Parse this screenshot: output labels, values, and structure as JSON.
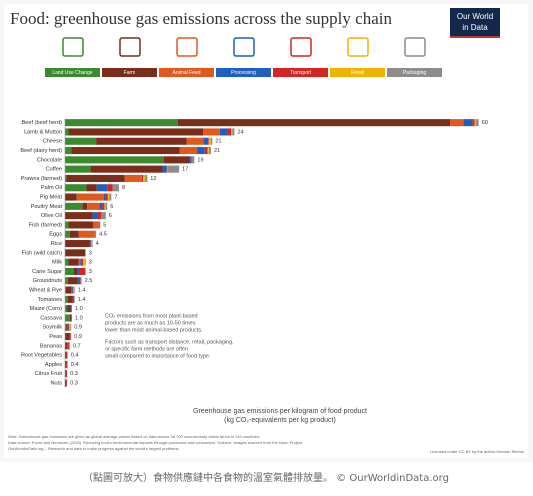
{
  "chart_data": {
    "type": "stacked-bar-horizontal",
    "title": "Food: greenhouse gas emissions across the supply chain",
    "logo": [
      "Our World",
      "in Data"
    ],
    "categories": [
      "Beef (beef herd)",
      "Lamb & Mutton",
      "Cheese",
      "Beef (dairy herd)",
      "Chocolate",
      "Coffee",
      "Prawns (farmed)",
      "Palm Oil",
      "Pig Meat",
      "Poultry Meat",
      "Olive Oil",
      "Fish (farmed)",
      "Eggs",
      "Rice",
      "Fish (wild catch)",
      "Milk",
      "Cane Sugar",
      "Groundnuts",
      "Wheat & Rye",
      "Tomatoes",
      "Maize (Corn)",
      "Cassava",
      "Soymilk",
      "Peas",
      "Bananas",
      "Root Vegetables",
      "Apples",
      "Citrus Fruit",
      "Nuts"
    ],
    "series": [
      {
        "name": "Land Use Change",
        "color": "#3a8a2e",
        "values": [
          16.3,
          0.5,
          4.5,
          0.9,
          14.3,
          3.7,
          0.2,
          3.1,
          0,
          2.5,
          0,
          0.5,
          0.7,
          0,
          0,
          0.5,
          1.3,
          0.4,
          0.1,
          0.4,
          0.3,
          0.7,
          0.2,
          0,
          0,
          0,
          0,
          0,
          0
        ]
      },
      {
        "name": "Farm",
        "color": "#7a2e1a",
        "values": [
          39.4,
          19.5,
          13.1,
          15.7,
          3.7,
          10.4,
          8.4,
          1.5,
          1.7,
          0.7,
          4.0,
          3.6,
          1.3,
          3.6,
          2.9,
          1.5,
          0.5,
          1.4,
          0.8,
          0.7,
          0.5,
          0.2,
          0.1,
          0.7,
          0.3,
          0.2,
          0.2,
          0.2,
          0.2
        ]
      },
      {
        "name": "Animal Feed",
        "color": "#e05a20",
        "values": [
          1.9,
          2.4,
          2.4,
          2.5,
          0,
          0,
          2.5,
          0,
          3.9,
          1.8,
          0,
          0.8,
          2.2,
          0,
          0,
          0.2,
          0,
          0,
          0,
          0,
          0,
          0,
          0,
          0,
          0,
          0,
          0,
          0,
          0
        ]
      },
      {
        "name": "Processing",
        "color": "#1f5fbf",
        "values": [
          1.3,
          1.1,
          0.7,
          1.1,
          0.2,
          0.6,
          0,
          1.5,
          0.3,
          0.4,
          0.7,
          0,
          0,
          0.1,
          0,
          0.2,
          0.3,
          0.4,
          0.2,
          0,
          0.1,
          0,
          0.2,
          0,
          0.1,
          0,
          0,
          0,
          0
        ]
      },
      {
        "name": "Transport",
        "color": "#d42424",
        "values": [
          0.3,
          0.5,
          0.1,
          0.4,
          0.1,
          0.1,
          0.2,
          0.8,
          0.3,
          0.3,
          0.5,
          0.1,
          0.1,
          0.1,
          0,
          0.2,
          0.8,
          0.1,
          0.1,
          0.2,
          0.1,
          0.1,
          0.1,
          0.1,
          0.2,
          0.1,
          0.1,
          0.1,
          0.1
        ]
      },
      {
        "name": "Retail",
        "color": "#f0b400",
        "values": [
          0.2,
          0.2,
          0.3,
          0.2,
          0,
          0.1,
          0.3,
          0,
          0.2,
          0.2,
          0,
          0,
          0,
          0.1,
          0,
          0.3,
          0,
          0,
          0.1,
          0,
          0,
          0,
          0.2,
          0,
          0,
          0,
          0,
          0,
          0
        ]
      },
      {
        "name": "Packaging",
        "color": "#8c8c8c",
        "values": [
          0.4,
          0.3,
          0.2,
          0.3,
          0.4,
          1.6,
          0.3,
          0.9,
          0.3,
          0.2,
          0.7,
          0.1,
          0.2,
          0.1,
          0.1,
          0.1,
          0.1,
          0.1,
          0.1,
          0.1,
          0,
          0,
          0.1,
          0.1,
          0.1,
          0.1,
          0.1,
          0,
          0
        ]
      }
    ],
    "total_labels": [
      "60",
      "24",
      "21",
      "21",
      "19",
      "17",
      "12",
      "8",
      "7",
      "6",
      "6",
      "5",
      "4.5",
      "4",
      "3",
      "3",
      "3",
      "2.5",
      "1.4",
      "1.4",
      "1.0",
      "1.0",
      "0.9",
      "0.9",
      "0.7",
      "0.4",
      "0.4",
      "0.3",
      "0.3"
    ],
    "xlim": [
      0,
      60
    ],
    "xlabel": "Greenhouse gas emissions per kilogram of food product",
    "xlabel_sub": "(kg CO₂-equivalents per kg product)",
    "annotations": [
      "CO₂ emissions from most plant-based",
      "products are as much as 10-50 times",
      "lower than most animal-based products.",
      "Factors such as transport distance, retail, packaging,",
      "or specific farm methods are often",
      "small compared to importance of food type."
    ],
    "notes": [
      "Note: Greenhouse gas emissions are given as global average values based on data across 38,700 commercially viable farms in 119 countries.",
      "Data source: Poore and Nemecek (2018). Reducing food's environmental impacts through producers and consumers. Science. Images sourced from the Noun Project.",
      "OurWorldinData.org – Research and data to make progress against the world's largest problems.",
      "Licensed under CC-BY by the author Hannah Ritchie."
    ],
    "caption": "（點圖可放大）食物供應鏈中各食物的溫室氣體排放量。 © OurWorldinData.org"
  }
}
